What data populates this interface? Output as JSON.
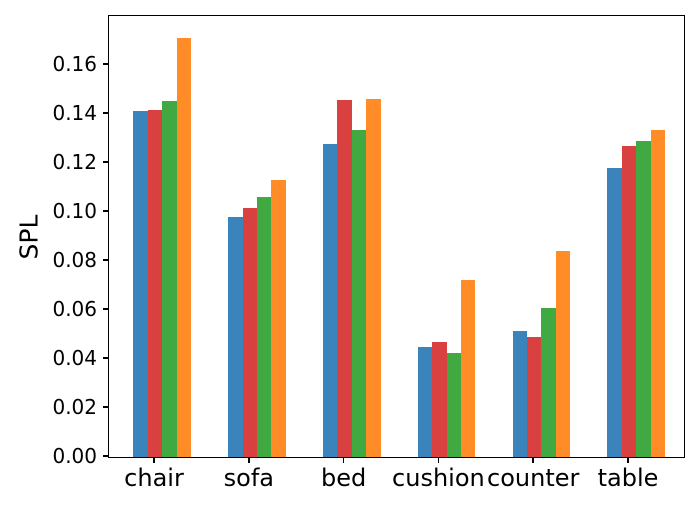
{
  "chart_data": {
    "type": "bar",
    "title": "",
    "xlabel": "",
    "ylabel": "SPL",
    "categories": [
      "chair",
      "sofa",
      "bed",
      "cushion",
      "counter",
      "table"
    ],
    "series": [
      {
        "name": "series-1-blue",
        "color": "#3a84bb",
        "values": [
          0.1411,
          0.0979,
          0.1276,
          0.045,
          0.0515,
          0.118
        ]
      },
      {
        "name": "series-2-red",
        "color": "#d94040",
        "values": [
          0.1418,
          0.1017,
          0.1457,
          0.0469,
          0.049,
          0.1268
        ]
      },
      {
        "name": "series-3-green",
        "color": "#41a941",
        "values": [
          0.1455,
          0.1062,
          0.1334,
          0.0423,
          0.061,
          0.1291
        ]
      },
      {
        "name": "series-4-orange",
        "color": "#ff8c26",
        "values": [
          0.1712,
          0.113,
          0.1463,
          0.0721,
          0.084,
          0.1334
        ]
      }
    ],
    "ylim": [
      0,
      0.18
    ],
    "yticks": [
      "0.00",
      "0.02",
      "0.04",
      "0.06",
      "0.08",
      "0.10",
      "0.12",
      "0.14",
      "0.16"
    ],
    "grid": false,
    "legend": "none",
    "background": "#ffffff",
    "axis_color": "#000000"
  }
}
